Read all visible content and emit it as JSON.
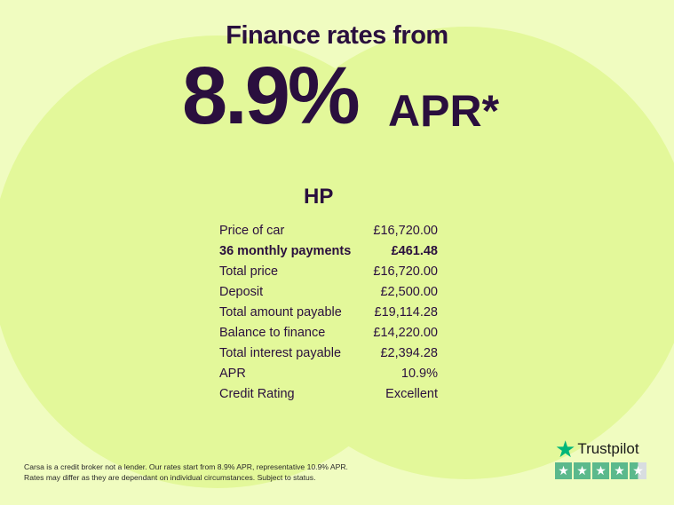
{
  "header": {
    "title": "Finance rates from",
    "rate": "8.9%",
    "apr": "APR*"
  },
  "section": "HP",
  "rows": [
    {
      "label": "Price of car",
      "value": "£16,720.00"
    },
    {
      "label": "36 monthly payments",
      "value": "£461.48"
    },
    {
      "label": "Total price",
      "value": "£16,720.00"
    },
    {
      "label": "Deposit",
      "value": "£2,500.00"
    },
    {
      "label": "Total amount payable",
      "value": "£19,114.28"
    },
    {
      "label": "Balance to finance",
      "value": "£14,220.00"
    },
    {
      "label": "Total interest payable",
      "value": "£2,394.28"
    },
    {
      "label": "APR",
      "value": "10.9%"
    },
    {
      "label": "Credit Rating",
      "value": "Excellent"
    }
  ],
  "disclaimer": {
    "line1": "Carsa is a credit broker not a lender. Our rates start from 8.9% APR, representative 10.9% APR.",
    "line2": "Rates may differ as they are dependant on individual circumstances. Subject to status."
  },
  "trustpilot": {
    "name": "Trustpilot",
    "rating_stars": 4.5,
    "icon": "star-icon",
    "color": "#00b67a"
  }
}
